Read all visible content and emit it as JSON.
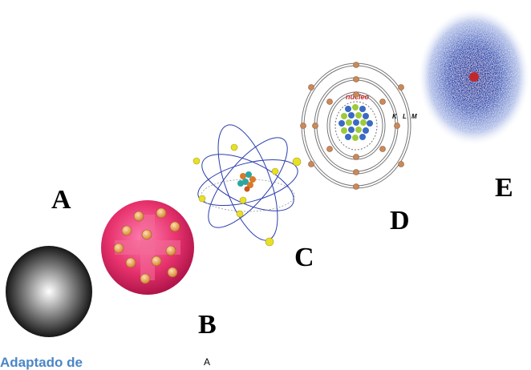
{
  "labels": {
    "a": "A",
    "b": "B",
    "c": "C",
    "d": "D",
    "e": "E"
  },
  "model_d": {
    "nucleus_text": "núcleo",
    "shell_k": "K",
    "shell_l": "L",
    "shell_m": "M"
  },
  "footer": {
    "credit": "Adaptado de",
    "mark": "A"
  },
  "colors": {
    "credit_blue": "#4a86c8",
    "nucleus_red": "#c0292b",
    "orbit_blue": "#2a3dae",
    "electron_yellow": "#e8e027",
    "pudding_pink": "#e8336e",
    "cloud_blue": "#2c4fb8"
  }
}
